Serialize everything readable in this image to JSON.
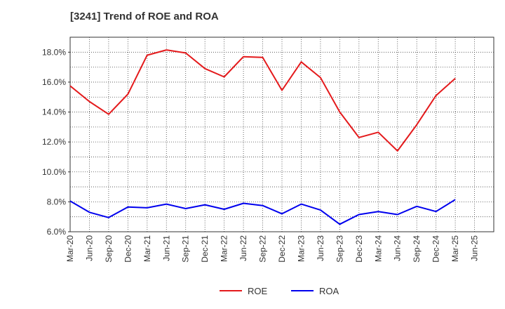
{
  "chart_data": {
    "type": "line",
    "title": "[3241]  Trend of ROE and ROA",
    "categories": [
      "Mar-20",
      "Jun-20",
      "Sep-20",
      "Dec-20",
      "Mar-21",
      "Jun-21",
      "Sep-21",
      "Dec-21",
      "Mar-22",
      "Jun-22",
      "Sep-22",
      "Dec-22",
      "Mar-23",
      "Jun-23",
      "Sep-23",
      "Dec-23",
      "Mar-24",
      "Jun-24",
      "Sep-24",
      "Dec-24",
      "Mar-25",
      "Jun-25"
    ],
    "series": [
      {
        "name": "ROE",
        "color": "#e41a1c",
        "values": [
          15.75,
          14.7,
          13.85,
          15.2,
          17.8,
          18.15,
          17.95,
          16.9,
          16.35,
          17.7,
          17.65,
          15.45,
          17.35,
          16.3,
          14.0,
          12.3,
          12.65,
          11.4,
          13.15,
          15.1,
          16.25,
          null
        ]
      },
      {
        "name": "ROA",
        "color": "#0000ee",
        "values": [
          8.05,
          7.3,
          6.95,
          7.65,
          7.6,
          7.85,
          7.55,
          7.8,
          7.5,
          7.9,
          7.75,
          7.2,
          7.85,
          7.45,
          6.5,
          7.15,
          7.35,
          7.15,
          7.7,
          7.35,
          8.15,
          null
        ]
      }
    ],
    "y_ticks": [
      "6.0%",
      "8.0%",
      "10.0%",
      "12.0%",
      "14.0%",
      "16.0%",
      "18.0%"
    ],
    "ylim": [
      6.0,
      19.0
    ],
    "grid": true,
    "legend_position": "bottom"
  }
}
